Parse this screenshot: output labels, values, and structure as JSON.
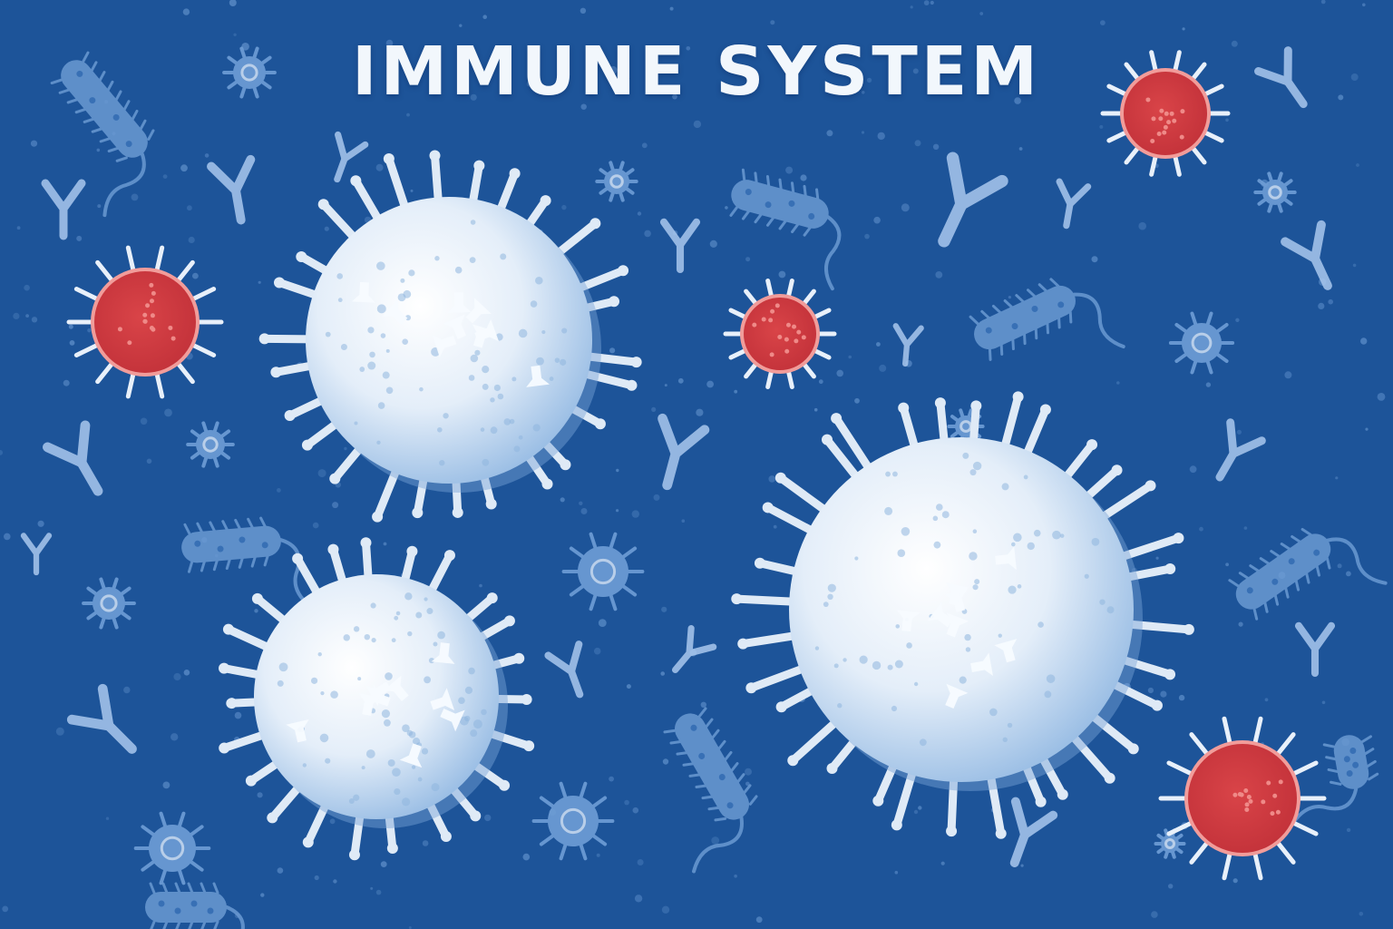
{
  "title": "IMMUNE SYSTEM",
  "colors": {
    "background": "#1d5499",
    "white_cell": "#e9f1fa",
    "white_cell_shade": "#8fb6df",
    "pathogen": "#d23b40",
    "pathogen_rim": "#f19c9a",
    "microbe": "#6f9ed6",
    "antibody": "#a9c8ee"
  },
  "icons": [
    "white-blood-cell-icon",
    "virus-icon",
    "bacterium-icon",
    "antibody-icon",
    "germ-icon"
  ]
}
